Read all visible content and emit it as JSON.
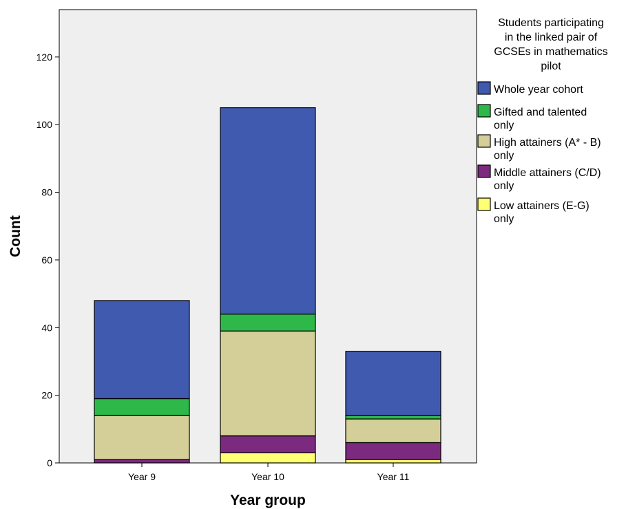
{
  "chart_data": {
    "type": "bar",
    "stacked": true,
    "xlabel": "Year group",
    "ylabel": "Count",
    "ylim": [
      0,
      134
    ],
    "yticks": [
      0,
      20,
      40,
      60,
      80,
      100,
      120
    ],
    "categories": [
      "Year 9",
      "Year 10",
      "Year 11"
    ],
    "legend": {
      "title_lines": [
        "Students participating",
        "in the linked pair of",
        "GCSEs in mathematics",
        "pilot"
      ],
      "placement": "right"
    },
    "series": [
      {
        "name_lines": [
          "Low attainers (E-G)",
          "only"
        ],
        "color": "#ffff73",
        "values": [
          0,
          3,
          1
        ]
      },
      {
        "name_lines": [
          "Middle attainers (C/D)",
          "only"
        ],
        "color": "#7b2a7f",
        "values": [
          1,
          5,
          5
        ]
      },
      {
        "name_lines": [
          "High attainers (A* - B)",
          "only"
        ],
        "color": "#d4cf98",
        "values": [
          13,
          31,
          7
        ]
      },
      {
        "name_lines": [
          "Gifted and talented",
          "only"
        ],
        "color": "#2fb84a",
        "values": [
          5,
          5,
          1
        ]
      },
      {
        "name_lines": [
          "Whole year cohort"
        ],
        "color": "#3f5aae",
        "values": [
          29,
          61,
          19
        ]
      }
    ],
    "plot_background": "#efefef"
  }
}
